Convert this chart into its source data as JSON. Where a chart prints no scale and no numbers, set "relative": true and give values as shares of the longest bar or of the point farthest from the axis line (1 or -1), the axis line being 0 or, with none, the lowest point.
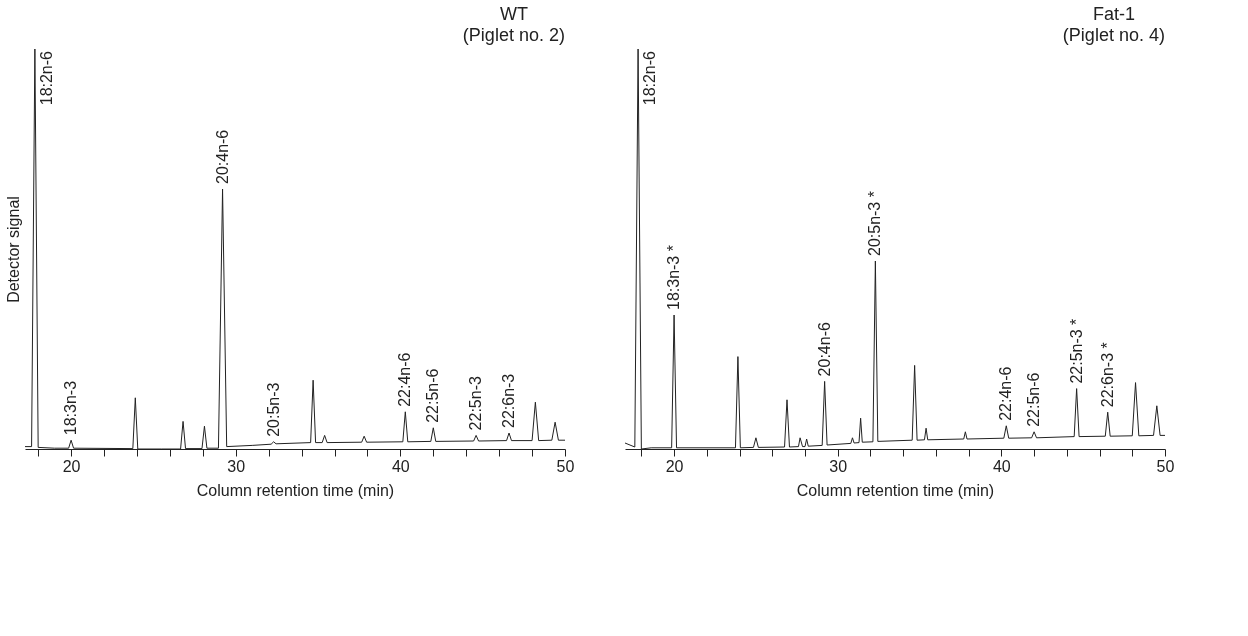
{
  "chart_data": [
    {
      "type": "line",
      "title": "WT",
      "subtitle": "(Piglet no. 2)",
      "xlabel": "Column retention time (min)",
      "ylabel": "Detector signal",
      "relative": true,
      "xlim": [
        17.2,
        50
      ],
      "xticks": [
        {
          "value": 18,
          "label": null
        },
        20,
        {
          "value": 22,
          "label": null
        },
        {
          "value": 24,
          "label": null
        },
        {
          "value": 26,
          "label": null
        },
        {
          "value": 28,
          "label": null
        },
        30,
        {
          "value": 32,
          "label": null
        },
        {
          "value": 34,
          "label": null
        },
        {
          "value": 36,
          "label": null
        },
        {
          "value": 38,
          "label": null
        },
        40,
        {
          "value": 42,
          "label": null
        },
        {
          "value": 44,
          "label": null
        },
        {
          "value": 46,
          "label": null
        },
        {
          "value": 48,
          "label": null
        },
        50
      ],
      "series": [
        {
          "color": "#222222",
          "x": [
            17.2,
            17.6,
            17.8,
            18.0,
            19.0,
            19.85,
            20.0,
            20.15,
            23.75,
            23.9,
            24.05,
            25.5,
            26.65,
            26.8,
            26.95,
            27.95,
            28.1,
            28.25,
            28.95,
            29.2,
            29.45,
            31.0,
            32.15,
            32.3,
            32.45,
            34.55,
            34.7,
            34.85,
            35.25,
            35.4,
            35.55,
            37.65,
            37.8,
            37.95,
            40.15,
            40.3,
            40.45,
            41.85,
            42.0,
            42.15,
            44.45,
            44.6,
            44.75,
            46.45,
            46.6,
            46.75,
            48.0,
            48.2,
            48.4,
            49.2,
            49.4,
            49.6,
            50.0
          ],
          "values": [
            0.006,
            0.006,
            1.0,
            0.004,
            0.002,
            0.002,
            0.022,
            0.002,
            0.001,
            0.128,
            0.0,
            0.0,
            0.0,
            0.069,
            0.001,
            0.001,
            0.057,
            0.002,
            0.002,
            0.65,
            0.006,
            0.009,
            0.012,
            0.018,
            0.013,
            0.016,
            0.172,
            0.016,
            0.016,
            0.034,
            0.016,
            0.017,
            0.032,
            0.017,
            0.018,
            0.093,
            0.018,
            0.019,
            0.053,
            0.019,
            0.02,
            0.034,
            0.02,
            0.021,
            0.04,
            0.021,
            0.021,
            0.117,
            0.021,
            0.022,
            0.067,
            0.022,
            0.022
          ]
        }
      ],
      "annotations": [
        {
          "text": "18:2n-6",
          "x": 17.8,
          "y": 1.0
        },
        {
          "text": "18:3n-3",
          "x": 20.0,
          "y": 0.022
        },
        {
          "text": "20:4n-6",
          "x": 29.2,
          "y": 0.65
        },
        {
          "text": "20:5n-3",
          "x": 32.3,
          "y": 0.018
        },
        {
          "text": "22:4n-6",
          "x": 40.3,
          "y": 0.093
        },
        {
          "text": "22:5n-6",
          "x": 42.0,
          "y": 0.053
        },
        {
          "text": "22:5n-3",
          "x": 44.6,
          "y": 0.034
        },
        {
          "text": "22:6n-3",
          "x": 46.6,
          "y": 0.04
        }
      ]
    },
    {
      "type": "line",
      "title": "Fat-1",
      "subtitle": "(Piglet no. 4)",
      "xlabel": "Column retention time (min)",
      "relative": true,
      "xlim": [
        17.0,
        50
      ],
      "xticks": [
        {
          "value": 18,
          "label": null
        },
        20,
        {
          "value": 22,
          "label": null
        },
        {
          "value": 24,
          "label": null
        },
        {
          "value": 26,
          "label": null
        },
        {
          "value": 28,
          "label": null
        },
        30,
        {
          "value": 32,
          "label": null
        },
        {
          "value": 34,
          "label": null
        },
        {
          "value": 36,
          "label": null
        },
        {
          "value": 38,
          "label": null
        },
        40,
        {
          "value": 42,
          "label": null
        },
        {
          "value": 44,
          "label": null
        },
        {
          "value": 46,
          "label": null
        },
        {
          "value": 48,
          "label": null
        },
        50
      ],
      "series": [
        {
          "color": "#222222",
          "x": [
            17.0,
            17.6,
            17.8,
            18.0,
            18.6,
            19.85,
            20.0,
            20.15,
            23.75,
            23.9,
            24.05,
            24.85,
            25.0,
            25.15,
            26.75,
            26.9,
            27.05,
            27.6,
            27.7,
            27.85,
            28.0,
            28.1,
            28.2,
            29.05,
            29.2,
            29.35,
            30.8,
            30.9,
            31.0,
            31.3,
            31.4,
            31.5,
            32.15,
            32.3,
            32.45,
            34.55,
            34.7,
            34.85,
            35.3,
            35.4,
            35.5,
            37.7,
            37.8,
            37.9,
            40.15,
            40.3,
            40.45,
            41.85,
            42.0,
            42.15,
            44.45,
            44.6,
            44.75,
            46.35,
            46.5,
            46.65,
            48.0,
            48.2,
            48.4,
            49.3,
            49.5,
            49.7,
            50.0
          ],
          "values": [
            0.015,
            0.005,
            1.0,
            0.0,
            0.003,
            0.003,
            0.335,
            0.003,
            0.003,
            0.231,
            0.003,
            0.004,
            0.028,
            0.004,
            0.005,
            0.123,
            0.005,
            0.006,
            0.028,
            0.006,
            0.006,
            0.025,
            0.007,
            0.009,
            0.169,
            0.01,
            0.014,
            0.028,
            0.015,
            0.016,
            0.077,
            0.017,
            0.018,
            0.47,
            0.019,
            0.022,
            0.209,
            0.022,
            0.023,
            0.052,
            0.023,
            0.025,
            0.043,
            0.025,
            0.027,
            0.058,
            0.027,
            0.028,
            0.043,
            0.028,
            0.031,
            0.151,
            0.031,
            0.032,
            0.092,
            0.032,
            0.033,
            0.166,
            0.033,
            0.034,
            0.108,
            0.034,
            0.034
          ]
        }
      ],
      "annotations": [
        {
          "text": "18:2n-6",
          "x": 17.8,
          "y": 1.0
        },
        {
          "text": "18:3n-3 *",
          "x": 20.0,
          "y": 0.335
        },
        {
          "text": "20:4n-6",
          "x": 29.2,
          "y": 0.169
        },
        {
          "text": "20:5n-3 *",
          "x": 32.3,
          "y": 0.47
        },
        {
          "text": "22:4n-6",
          "x": 40.3,
          "y": 0.058
        },
        {
          "text": "22:5n-6",
          "x": 42.0,
          "y": 0.043
        },
        {
          "text": "22:5n-3 *",
          "x": 44.6,
          "y": 0.151
        },
        {
          "text": "22:6n-3 *",
          "x": 46.5,
          "y": 0.092
        }
      ]
    }
  ]
}
